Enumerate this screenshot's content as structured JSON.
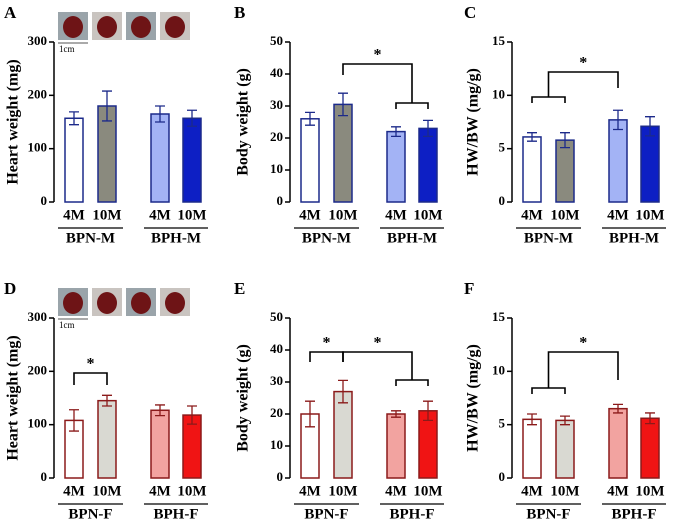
{
  "chart_data": [
    {
      "type": "bar",
      "panel": "A",
      "ylabel": "Heart weight (mg)",
      "categories": [
        "4M",
        "10M",
        "4M",
        "10M"
      ],
      "groups": [
        "BPN-M",
        "BPH-M"
      ],
      "values": [
        157,
        180,
        165,
        157
      ],
      "errors": [
        12,
        28,
        15,
        15
      ],
      "colors": [
        "#ffffff",
        "#8a8a7e",
        "#a3b3f5",
        "#0d1fc4"
      ],
      "edge_color": "#1c2a8a",
      "ylim": [
        0,
        300
      ],
      "yticks": [
        0,
        100,
        200,
        300
      ],
      "annotations": [],
      "scale_label": "1cm"
    },
    {
      "type": "bar",
      "panel": "B",
      "ylabel": "Body weight (g)",
      "categories": [
        "4M",
        "10M",
        "4M",
        "10M"
      ],
      "groups": [
        "BPN-M",
        "BPH-M"
      ],
      "values": [
        26,
        30.5,
        22,
        23
      ],
      "errors": [
        2,
        3.5,
        1.5,
        2.5
      ],
      "colors": [
        "#ffffff",
        "#8a8a7e",
        "#a3b3f5",
        "#0d1fc4"
      ],
      "edge_color": "#1c2a8a",
      "ylim": [
        0,
        50
      ],
      "yticks": [
        0,
        10,
        20,
        30,
        40,
        50
      ],
      "annotations": [
        "*"
      ]
    },
    {
      "type": "bar",
      "panel": "C",
      "ylabel": "HW/BW (mg/g)",
      "categories": [
        "4M",
        "10M",
        "4M",
        "10M"
      ],
      "groups": [
        "BPN-M",
        "BPH-M"
      ],
      "values": [
        6.1,
        5.8,
        7.7,
        7.1
      ],
      "errors": [
        0.4,
        0.7,
        0.9,
        0.9
      ],
      "colors": [
        "#ffffff",
        "#8a8a7e",
        "#a3b3f5",
        "#0d1fc4"
      ],
      "edge_color": "#1c2a8a",
      "ylim": [
        0,
        15
      ],
      "yticks": [
        0,
        5,
        10,
        15
      ],
      "annotations": [
        "*"
      ]
    },
    {
      "type": "bar",
      "panel": "D",
      "ylabel": "Heart weight (mg)",
      "categories": [
        "4M",
        "10M",
        "4M",
        "10M"
      ],
      "groups": [
        "BPN-F",
        "BPH-F"
      ],
      "values": [
        108,
        145,
        127,
        118
      ],
      "errors": [
        20,
        10,
        10,
        17
      ],
      "colors": [
        "#ffffff",
        "#d9d9d2",
        "#f2a3a0",
        "#f01414"
      ],
      "edge_color": "#8b1a1a",
      "ylim": [
        0,
        300
      ],
      "yticks": [
        0,
        100,
        200,
        300
      ],
      "annotations": [
        "*"
      ],
      "scale_label": "1cm"
    },
    {
      "type": "bar",
      "panel": "E",
      "ylabel": "Body weight (g)",
      "categories": [
        "4M",
        "10M",
        "4M",
        "10M"
      ],
      "groups": [
        "BPN-F",
        "BPH-F"
      ],
      "values": [
        20,
        27,
        20,
        21
      ],
      "errors": [
        4,
        3.5,
        1,
        3
      ],
      "colors": [
        "#ffffff",
        "#d9d9d2",
        "#f2a3a0",
        "#f01414"
      ],
      "edge_color": "#8b1a1a",
      "ylim": [
        0,
        50
      ],
      "yticks": [
        0,
        10,
        20,
        30,
        40,
        50
      ],
      "annotations": [
        "*",
        "*"
      ]
    },
    {
      "type": "bar",
      "panel": "F",
      "ylabel": "HW/BW (mg/g)",
      "categories": [
        "4M",
        "10M",
        "4M",
        "10M"
      ],
      "groups": [
        "BPN-F",
        "BPH-F"
      ],
      "values": [
        5.5,
        5.4,
        6.5,
        5.6
      ],
      "errors": [
        0.5,
        0.4,
        0.4,
        0.5
      ],
      "colors": [
        "#ffffff",
        "#d9d9d2",
        "#f2a3a0",
        "#f01414"
      ],
      "edge_color": "#8b1a1a",
      "ylim": [
        0,
        15
      ],
      "yticks": [
        0,
        5,
        10,
        15
      ],
      "annotations": [
        "*"
      ]
    }
  ]
}
